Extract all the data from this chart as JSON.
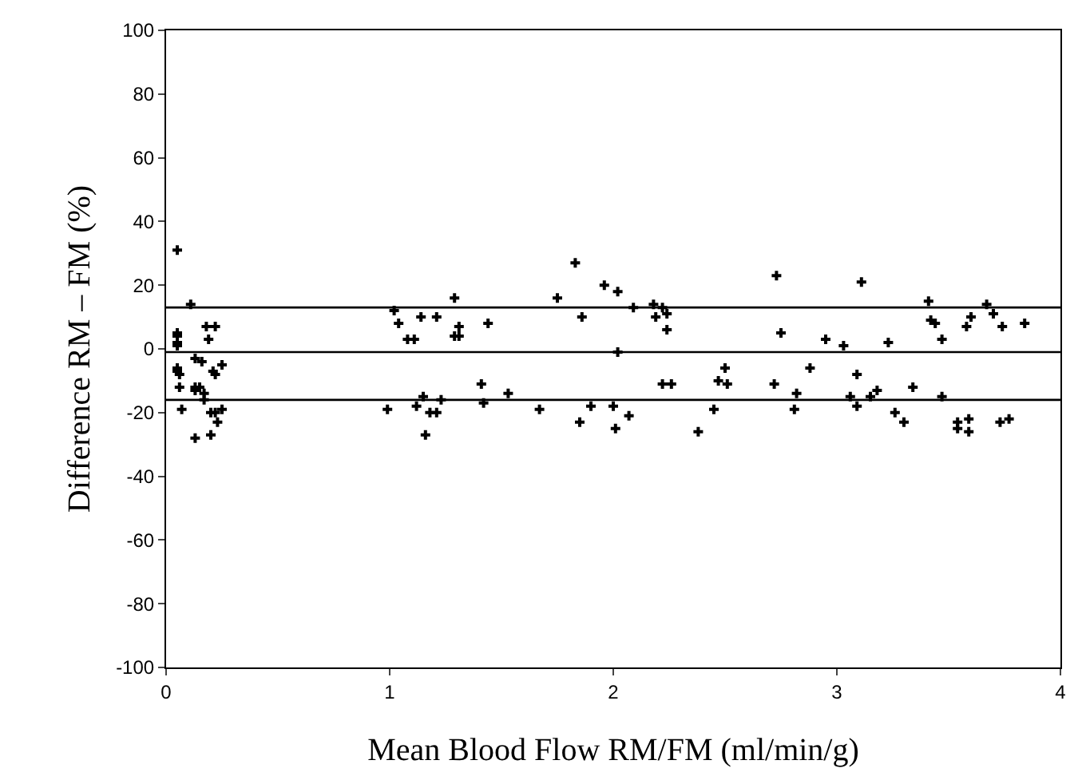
{
  "chart_data": {
    "type": "scatter",
    "xlabel": "Mean Blood Flow RM/FM (ml/min/g)",
    "ylabel": "Difference RM – FM (%)",
    "xlim": [
      0,
      4
    ],
    "xticks": [
      0,
      1,
      2,
      3,
      4
    ],
    "ylim": [
      -100,
      100
    ],
    "yticks": [
      -100,
      -80,
      -60,
      -40,
      -20,
      0,
      20,
      40,
      60,
      80,
      100
    ],
    "marker": "cross",
    "ref_lines": [
      {
        "axis": "y",
        "value": 13,
        "color": "#000000"
      },
      {
        "axis": "y",
        "value": -1,
        "color": "#000000"
      },
      {
        "axis": "y",
        "value": -16,
        "color": "#000000"
      }
    ],
    "series": [
      {
        "color": "#000000",
        "x": [
          0.05,
          0.11,
          0.18,
          0.22,
          0.19,
          0.05,
          0.05,
          0.05,
          0.05,
          0.13,
          0.16,
          0.05,
          0.05,
          0.06,
          0.25,
          0.21,
          0.22,
          0.06,
          0.13,
          0.15,
          0.13,
          0.17,
          0.17,
          0.07,
          0.2,
          0.22,
          0.25,
          0.23,
          0.13,
          0.2,
          1.02,
          1.04,
          0.99,
          1.08,
          1.11,
          1.14,
          1.21,
          1.29,
          1.31,
          1.29,
          1.31,
          1.44,
          1.83,
          1.75,
          1.96,
          1.86,
          1.12,
          1.15,
          1.18,
          1.21,
          1.23,
          1.16,
          1.41,
          1.42,
          1.53,
          1.67,
          1.9,
          1.85,
          2.02,
          2.09,
          2.18,
          2.22,
          2.19,
          2.24,
          2.24,
          2.02,
          2.73,
          2.75,
          2.95,
          3.03,
          2.5,
          2.47,
          2.51,
          2.22,
          2.26,
          2.72,
          2.88,
          2.82,
          2.81,
          2.0,
          2.07,
          2.01,
          2.45,
          2.38,
          3.11,
          3.23,
          3.41,
          3.42,
          3.44,
          3.47,
          3.67,
          3.7,
          3.6,
          3.58,
          3.74,
          3.84,
          3.09,
          3.06,
          3.09,
          3.18,
          3.15,
          3.34,
          3.26,
          3.3,
          3.47,
          3.54,
          3.54,
          3.59,
          3.59,
          3.73,
          3.77
        ],
        "values": [
          31,
          14,
          7,
          7,
          3,
          5,
          4,
          2,
          1,
          -3,
          -4,
          -6,
          -7,
          -8,
          -5,
          -7,
          -8,
          -12,
          -12,
          -12,
          -13,
          -14,
          -16,
          -19,
          -20,
          -20,
          -19,
          -23,
          -28,
          -27,
          12,
          8,
          -19,
          3,
          3,
          10,
          10,
          16,
          7,
          4,
          4,
          8,
          27,
          16,
          20,
          10,
          -18,
          -15,
          -20,
          -20,
          -16,
          -27,
          -11,
          -17,
          -14,
          -19,
          -18,
          -23,
          18,
          13,
          14,
          13,
          10,
          11,
          6,
          -1,
          23,
          5,
          3,
          1,
          -6,
          -10,
          -11,
          -11,
          -11,
          -11,
          -6,
          -14,
          -19,
          -18,
          -21,
          -25,
          -19,
          -26,
          21,
          2,
          15,
          9,
          8,
          3,
          14,
          11,
          10,
          7,
          7,
          8,
          -8,
          -15,
          -18,
          -13,
          -15,
          -12,
          -20,
          -23,
          -15,
          -23,
          -25,
          -22,
          -26,
          -23,
          -22
        ]
      }
    ]
  }
}
